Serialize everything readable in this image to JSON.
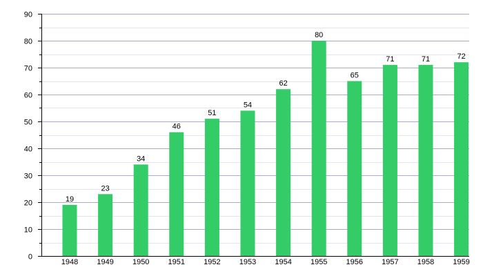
{
  "chart_data": {
    "type": "bar",
    "categories": [
      "1948",
      "1949",
      "1950",
      "1951",
      "1952",
      "1953",
      "1954",
      "1955",
      "1956",
      "1957",
      "1958",
      "1959"
    ],
    "values": [
      19,
      23,
      34,
      46,
      51,
      54,
      62,
      80,
      65,
      71,
      71,
      72
    ],
    "ylim": [
      0,
      90
    ],
    "yticks": [
      0,
      10,
      20,
      30,
      40,
      50,
      60,
      70,
      80,
      90
    ],
    "grid": "horizontal",
    "data_labels": true,
    "bar_color": "#33cc66",
    "grid_color": "#aaaacc",
    "minor_grid_color": "#e4e4ee"
  }
}
